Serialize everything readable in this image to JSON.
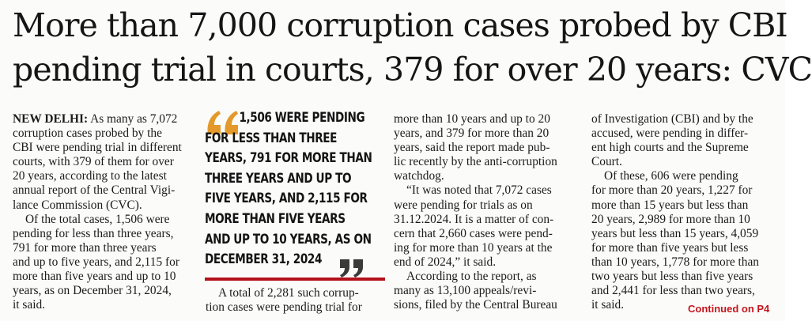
{
  "headline": {
    "line1": "More than 7,000 corruption cases probed by CBI",
    "line2": "pending trial in courts, 379 for over 20 years: CVC"
  },
  "pull_quote": {
    "lines": [
      "1,506 WERE PENDING",
      "FOR LESS THAN THREE",
      "YEARS, 791 FOR MORE THAN",
      "THREE YEARS AND UP TO",
      "FIVE YEARS, AND 2,115 FOR",
      "MORE THAN FIVE YEARS",
      "AND UP TO 10 YEARS, AS ON",
      "DECEMBER 31, 2024"
    ],
    "accent_color": "#b3121a",
    "quote_mark_color": "#e39a2a"
  },
  "column1": {
    "dateline": "NEW DELHI:",
    "lines": [
      " As many as 7,072",
      "corruption cases probed by the",
      "CBI were pending trial in different",
      "courts, with 379 of them for over",
      "20 years, according to the latest",
      "annual report of the Central Vigi-",
      "lance Commission (CVC).",
      "Of the total cases, 1,506 were",
      "pending for less than three years,",
      "791 for more than three years",
      "and up to five years, and 2,115 for",
      "more than five years and up to 10",
      "years, as on December 31, 2024,",
      "it said."
    ]
  },
  "column2": {
    "lines": [
      "A total of 2,281 such corrup-",
      "tion cases were pending trial for"
    ]
  },
  "column3": {
    "lines": [
      "more than 10 years and up to 20",
      "years, and 379 for more than 20",
      "years, said the report made pub-",
      "lic recently by the anti-corruption",
      "watchdog.",
      "“It was noted that 7,072 cases",
      "were pending for trials as on",
      "31.12.2024. It is a matter of con-",
      "cern that 2,660 cases were pend-",
      "ing for more than 10 years at the",
      "end of 2024,” it said.",
      "According to the report, as",
      "many as 13,100 appeals/revi-",
      "sions, filed by the Central Bureau"
    ]
  },
  "column4": {
    "lines": [
      "of Investigation (CBI) and by the",
      "accused, were pending in differ-",
      "ent high courts and the Supreme",
      "Court.",
      "Of these, 606 were pending",
      "for more than 20 years, 1,227 for",
      "more than 15 years but less than",
      "20 years, 2,989 for more than 10",
      "years but less than 15 years, 4,059",
      "for more than five years but less",
      "than 10 years, 1,778 for more than",
      "two years but less than five years",
      "and 2,441 for less than two years,",
      "it said."
    ]
  },
  "continued": "Continued on P4"
}
